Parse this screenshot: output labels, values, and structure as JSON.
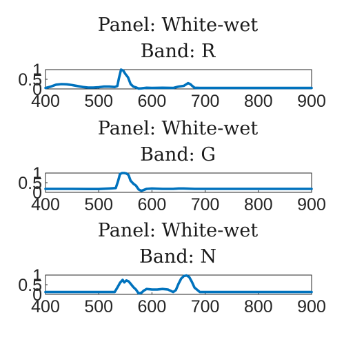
{
  "chart_data": [
    {
      "type": "line",
      "title_line1": "Panel: White-wet",
      "title_line2": "Band: R",
      "xlim": [
        400,
        900
      ],
      "ylim": [
        0,
        1
      ],
      "xticks": [
        "400",
        "500",
        "600",
        "700",
        "800",
        "900"
      ],
      "yticks": [
        "0",
        "0.5",
        "1"
      ],
      "series": [
        {
          "color": "#0072BD",
          "x": [
            400,
            410,
            420,
            430,
            440,
            450,
            460,
            470,
            480,
            490,
            500,
            510,
            520,
            530,
            535,
            538,
            542,
            546,
            550,
            555,
            560,
            565,
            570,
            575,
            580,
            590,
            600,
            620,
            640,
            650,
            660,
            665,
            668,
            672,
            676,
            680,
            690,
            700,
            750,
            800,
            850,
            900
          ],
          "y": [
            0.05,
            0.12,
            0.22,
            0.25,
            0.24,
            0.2,
            0.15,
            0.1,
            0.07,
            0.07,
            0.09,
            0.12,
            0.12,
            0.1,
            0.15,
            0.55,
            1.0,
            0.95,
            0.78,
            0.6,
            0.25,
            0.12,
            0.08,
            0.02,
            0.03,
            0.06,
            0.05,
            0.06,
            0.05,
            0.12,
            0.16,
            0.25,
            0.3,
            0.25,
            0.15,
            0.06,
            0.05,
            0.05,
            0.05,
            0.05,
            0.05,
            0.05
          ]
        }
      ]
    },
    {
      "type": "line",
      "title_line1": "Panel: White-wet",
      "title_line2": "Band: G",
      "xlim": [
        400,
        900
      ],
      "ylim": [
        0,
        1
      ],
      "xticks": [
        "400",
        "500",
        "600",
        "700",
        "800",
        "900"
      ],
      "yticks": [
        "0",
        "0.5",
        "1"
      ],
      "series": [
        {
          "color": "#0072BD",
          "x": [
            400,
            450,
            480,
            500,
            520,
            532,
            536,
            540,
            544,
            548,
            552,
            556,
            560,
            565,
            570,
            575,
            580,
            590,
            600,
            620,
            640,
            650,
            660,
            680,
            700,
            750,
            800,
            850,
            900
          ],
          "y": [
            0.18,
            0.18,
            0.17,
            0.17,
            0.2,
            0.22,
            0.55,
            0.95,
            1.0,
            1.0,
            0.98,
            0.9,
            0.6,
            0.45,
            0.35,
            0.15,
            0.08,
            0.18,
            0.2,
            0.18,
            0.18,
            0.2,
            0.2,
            0.18,
            0.18,
            0.18,
            0.18,
            0.18,
            0.18
          ]
        }
      ]
    },
    {
      "type": "line",
      "title_line1": "Panel: White-wet",
      "title_line2": "Band: N",
      "xlim": [
        400,
        900
      ],
      "ylim": [
        0,
        1
      ],
      "xticks": [
        "400",
        "500",
        "600",
        "700",
        "800",
        "900"
      ],
      "yticks": [
        "0",
        "0.5",
        "1"
      ],
      "series": [
        {
          "color": "#0072BD",
          "x": [
            400,
            450,
            500,
            520,
            530,
            535,
            540,
            545,
            548,
            552,
            556,
            560,
            565,
            570,
            575,
            580,
            585,
            590,
            600,
            610,
            620,
            630,
            640,
            645,
            650,
            655,
            660,
            665,
            670,
            675,
            680,
            690,
            700,
            750,
            800,
            850,
            900
          ],
          "y": [
            0.12,
            0.12,
            0.12,
            0.12,
            0.12,
            0.35,
            0.6,
            0.75,
            0.62,
            0.72,
            0.68,
            0.55,
            0.38,
            0.25,
            0.05,
            0.08,
            0.2,
            0.28,
            0.25,
            0.25,
            0.28,
            0.25,
            0.12,
            0.22,
            0.55,
            0.82,
            0.95,
            0.98,
            0.9,
            0.65,
            0.35,
            0.12,
            0.12,
            0.12,
            0.12,
            0.12,
            0.12
          ]
        }
      ]
    }
  ]
}
